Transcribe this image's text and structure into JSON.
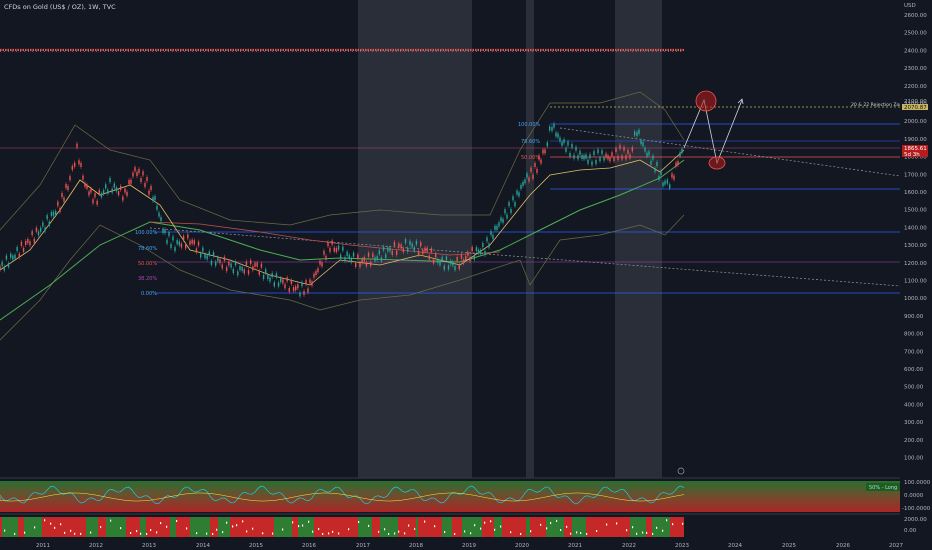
{
  "header": {
    "symbol_title": "CFDs on Gold (US$ / OZ), 1W, TVC",
    "currency_label": "USD"
  },
  "price_axis": {
    "ticks": [
      "2600.00",
      "2500.00",
      "2400.00",
      "2300.00",
      "2200.00",
      "2100.00",
      "2000.00",
      "1900.00",
      "1800.00",
      "1700.00",
      "1600.00",
      "1500.00",
      "1400.00",
      "1300.00",
      "1200.00",
      "1100.00",
      "1000.00",
      "900.00",
      "800.00",
      "700.00",
      "600.00",
      "500.00",
      "400.00",
      "300.00",
      "200.00",
      "100.00"
    ],
    "current_price_badge": "1865.61",
    "countdown_badge": "5d 3h",
    "zone_price_badge": "2070.87",
    "zone_label_price": "2100.00"
  },
  "time_axis": {
    "ticks": [
      "2011",
      "2012",
      "2013",
      "2014",
      "2015",
      "2016",
      "2017",
      "2018",
      "2019",
      "2020",
      "2021",
      "2022",
      "2023",
      "2024",
      "2025",
      "2026",
      "2027"
    ]
  },
  "annotations": {
    "rejection_zone": "20 & 22 Rejection Zone",
    "fib_upper": [
      "100.00%",
      "78.60%",
      "50.00%"
    ],
    "fib_lower": [
      "100.00%",
      "78.60%",
      "50.00%",
      "38.20%",
      "0.00%"
    ]
  },
  "oscillator_pane": {
    "label": "50% - Long",
    "ticks": [
      "100.0000",
      "0.0000",
      "-100.0000"
    ]
  },
  "volume_pane": {
    "ticks": [
      "2000.00",
      "0.00"
    ]
  },
  "colors": {
    "background": "#131722",
    "up": "#26a69a",
    "down": "#ef5350",
    "fib_line": "#2962ff",
    "session_shade": "#2a2e39"
  }
}
